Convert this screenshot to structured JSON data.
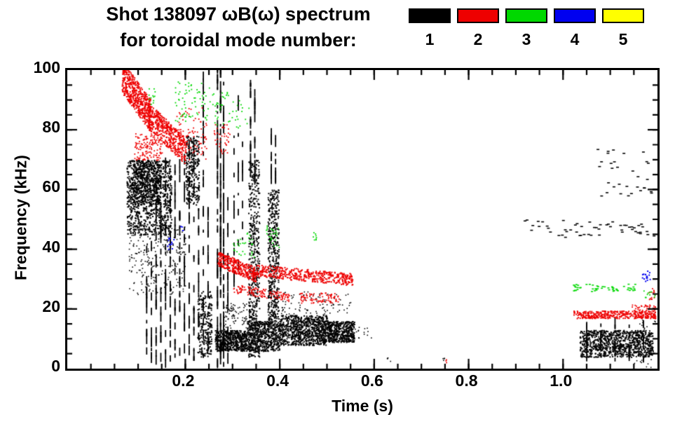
{
  "header": {
    "title_line1": "Shot 138097 ωB(ω) spectrum",
    "title_line2": "for toroidal mode number:"
  },
  "chart_data": {
    "type": "scatter",
    "title": "Shot 138097 ωB(ω) spectrum for toroidal mode number",
    "xlabel": "Time (s)",
    "ylabel": "Frequency (kHz)",
    "xlim": [
      -0.05,
      1.2
    ],
    "ylim": [
      0,
      100
    ],
    "xticks": [
      0.2,
      0.4,
      0.6,
      0.8,
      1.0
    ],
    "xtick_labels": [
      "0.2",
      "0.4",
      "0.6",
      "0.8",
      "1.0"
    ],
    "yticks": [
      0,
      20,
      40,
      60,
      80,
      100
    ],
    "xtick_minor_step": 0.05,
    "ytick_minor_step": 5,
    "grid": false,
    "legend_position": "top-right",
    "legend": [
      {
        "label": "1",
        "color": "#000000"
      },
      {
        "label": "2",
        "color": "#ee0000"
      },
      {
        "label": "3",
        "color": "#00d800"
      },
      {
        "label": "4",
        "color": "#0000f0"
      },
      {
        "label": "5",
        "color": "#ffff00"
      }
    ],
    "series": [
      {
        "name": "n=1",
        "color": "#000000",
        "features": [
          {
            "type": "band",
            "t": [
              0.075,
              0.17
            ],
            "f": [
              45,
              70
            ],
            "n": 900,
            "s": 2
          },
          {
            "type": "band",
            "t": [
              0.085,
              0.145
            ],
            "f": [
              55,
              70
            ],
            "n": 500,
            "s": 2
          },
          {
            "type": "band",
            "t": [
              0.08,
              0.2
            ],
            "f": [
              25,
              48
            ],
            "n": 260,
            "s": 1.6
          },
          {
            "type": "vline",
            "t": 0.118,
            "f": [
              3,
              40
            ],
            "segs": 14
          },
          {
            "type": "vline",
            "t": 0.128,
            "f": [
              0,
              45
            ],
            "segs": 16
          },
          {
            "type": "vline",
            "t": 0.138,
            "f": [
              0,
              60
            ],
            "segs": 20
          },
          {
            "type": "vline",
            "t": 0.148,
            "f": [
              0,
              65
            ],
            "segs": 22
          },
          {
            "type": "vline",
            "t": 0.158,
            "f": [
              0,
              70
            ],
            "segs": 24
          },
          {
            "type": "vline",
            "t": 0.168,
            "f": [
              0,
              72
            ],
            "segs": 24
          },
          {
            "type": "vline",
            "t": 0.178,
            "f": [
              0,
              70
            ],
            "segs": 22
          },
          {
            "type": "vline",
            "t": 0.188,
            "f": [
              2,
              68
            ],
            "segs": 20
          },
          {
            "type": "vline",
            "t": 0.198,
            "f": [
              0,
              72
            ],
            "segs": 22
          },
          {
            "type": "vline",
            "t": 0.208,
            "f": [
              0,
              76
            ],
            "segs": 24
          },
          {
            "type": "vline",
            "t": 0.218,
            "f": [
              0,
              76
            ],
            "segs": 22
          },
          {
            "type": "vline",
            "t": 0.228,
            "f": [
              3,
              60
            ],
            "segs": 16
          },
          {
            "type": "band",
            "t": [
              0.2,
              0.228
            ],
            "f": [
              55,
              78
            ],
            "n": 260,
            "s": 2
          },
          {
            "type": "band",
            "t": [
              0.225,
              0.255
            ],
            "f": [
              4,
              26
            ],
            "n": 220,
            "s": 2
          },
          {
            "type": "vline",
            "t": 0.238,
            "f": [
              0,
              97
            ],
            "segs": 34
          },
          {
            "type": "vline",
            "t": 0.248,
            "f": [
              0,
              55
            ],
            "segs": 16
          },
          {
            "type": "vline",
            "t": 0.268,
            "f": [
              0,
              100
            ],
            "segs": 55
          },
          {
            "type": "vline",
            "t": 0.2745,
            "f": [
              0,
              100
            ],
            "segs": 58
          },
          {
            "type": "vline",
            "t": 0.281,
            "f": [
              0,
              96
            ],
            "segs": 46
          },
          {
            "type": "vline",
            "t": 0.29,
            "f": [
              0,
              60
            ],
            "segs": 20
          },
          {
            "type": "band",
            "t": [
              0.262,
              0.33
            ],
            "f": [
              6,
              13
            ],
            "n": 560,
            "s": 2
          },
          {
            "type": "band",
            "t": [
              0.28,
              0.33
            ],
            "f": [
              13,
              22
            ],
            "n": 80,
            "s": 1.6
          },
          {
            "type": "vline",
            "t": 0.303,
            "f": [
              25,
              90
            ],
            "segs": 13
          },
          {
            "type": "vline",
            "t": 0.312,
            "f": [
              30,
              88
            ],
            "segs": 10
          },
          {
            "type": "vline",
            "t": 0.321,
            "f": [
              40,
              80
            ],
            "segs": 8
          },
          {
            "type": "band",
            "t": [
              0.333,
              0.356
            ],
            "f": [
              4,
              70
            ],
            "n": 520,
            "s": 2
          },
          {
            "type": "vline",
            "t": 0.338,
            "f": [
              60,
              95
            ],
            "segs": 16
          },
          {
            "type": "vline",
            "t": 0.347,
            "f": [
              60,
              93
            ],
            "segs": 14
          },
          {
            "type": "band",
            "t": [
              0.33,
              0.4
            ],
            "f": [
              6,
              16
            ],
            "n": 560,
            "s": 2
          },
          {
            "type": "band",
            "t": [
              0.374,
              0.397
            ],
            "f": [
              16,
              60
            ],
            "n": 440,
            "s": 2
          },
          {
            "type": "vline",
            "t": 0.382,
            "f": [
              60,
              80
            ],
            "segs": 10
          },
          {
            "type": "vline",
            "t": 0.391,
            "f": [
              60,
              78
            ],
            "segs": 9
          },
          {
            "type": "band",
            "t": [
              0.4,
              0.5
            ],
            "f": [
              8,
              18
            ],
            "n": 820,
            "s": 2
          },
          {
            "type": "band",
            "t": [
              0.5,
              0.557
            ],
            "f": [
              9,
              16
            ],
            "n": 460,
            "s": 2
          },
          {
            "type": "band",
            "t": [
              0.4,
              0.55
            ],
            "f": [
              18,
              26
            ],
            "n": 90,
            "s": 1.6
          },
          {
            "type": "band",
            "t": [
              0.555,
              0.6
            ],
            "f": [
              10,
              14
            ],
            "n": 14,
            "s": 1.6
          },
          {
            "type": "band",
            "t": [
              0.62,
              0.64
            ],
            "f": [
              2,
              4
            ],
            "n": 4,
            "s": 1.6
          },
          {
            "type": "band",
            "t": [
              0.74,
              0.76
            ],
            "f": [
              2,
              4
            ],
            "n": 4,
            "s": 1.6
          },
          {
            "type": "band",
            "t": [
              0.9,
              1.19
            ],
            "f": [
              44,
              50
            ],
            "n": 55,
            "sw": 4,
            "sh": 1.6
          },
          {
            "type": "band",
            "t": [
              1.07,
              1.19
            ],
            "f": [
              58,
              74
            ],
            "n": 32,
            "sw": 4,
            "sh": 1.6
          },
          {
            "type": "band",
            "t": [
              1.035,
              1.19
            ],
            "f": [
              4,
              13
            ],
            "n": 900,
            "s": 2
          },
          {
            "type": "vline",
            "t": 1.05,
            "f": [
              2,
              14
            ],
            "segs": 8
          },
          {
            "type": "vline",
            "t": 1.08,
            "f": [
              2,
              14
            ],
            "segs": 8
          },
          {
            "type": "vline",
            "t": 1.11,
            "f": [
              2,
              15
            ],
            "segs": 8
          },
          {
            "type": "vline",
            "t": 1.14,
            "f": [
              2,
              14
            ],
            "segs": 8
          },
          {
            "type": "vline",
            "t": 1.17,
            "f": [
              2,
              15
            ],
            "segs": 8
          },
          {
            "type": "band",
            "t": [
              1.15,
              1.195
            ],
            "f": [
              0,
              18
            ],
            "n": 60,
            "s": 1.6
          }
        ]
      },
      {
        "name": "n=2",
        "color": "#ee0000",
        "features": [
          {
            "type": "slope",
            "t": [
              0.065,
              0.125
            ],
            "fc": [
              98,
              85
            ],
            "w": 11,
            "n": 520,
            "s": 2
          },
          {
            "type": "slope",
            "t": [
              0.12,
              0.2
            ],
            "fc": [
              85,
              73
            ],
            "w": 9,
            "n": 460,
            "s": 2
          },
          {
            "type": "band",
            "t": [
              0.09,
              0.15
            ],
            "f": [
              70,
              79
            ],
            "n": 140,
            "s": 1.8
          },
          {
            "type": "band",
            "t": [
              0.175,
              0.245
            ],
            "f": [
              70,
              88
            ],
            "n": 90,
            "s": 1.8
          },
          {
            "type": "band",
            "t": [
              0.26,
              0.295
            ],
            "f": [
              72,
              82
            ],
            "n": 40,
            "s": 1.8
          },
          {
            "type": "slope",
            "t": [
              0.268,
              0.35
            ],
            "fc": [
              37,
              31.5
            ],
            "w": 5,
            "n": 320,
            "s": 2
          },
          {
            "type": "slope",
            "t": [
              0.35,
              0.553
            ],
            "fc": [
              33,
              30
            ],
            "w": 4,
            "n": 420,
            "s": 2
          },
          {
            "type": "slope",
            "t": [
              0.3,
              0.42
            ],
            "fc": [
              27,
              24
            ],
            "w": 3,
            "n": 140,
            "s": 1.8
          },
          {
            "type": "band",
            "t": [
              0.44,
              0.525
            ],
            "f": [
              22,
              25.5
            ],
            "n": 90,
            "s": 1.8
          },
          {
            "type": "band",
            "t": [
              1.02,
              1.195
            ],
            "f": [
              17,
              19.5
            ],
            "n": 340,
            "s": 2
          },
          {
            "type": "band",
            "t": [
              1.14,
              1.195
            ],
            "f": [
              19.5,
              21.5
            ],
            "n": 40,
            "s": 1.8
          },
          {
            "type": "band",
            "t": [
              1.18,
              1.195
            ],
            "f": [
              23,
              27
            ],
            "n": 14,
            "s": 1.8
          },
          {
            "type": "band",
            "t": [
              0.745,
              0.755
            ],
            "f": [
              2,
              4
            ],
            "n": 3,
            "s": 1.8
          }
        ]
      },
      {
        "name": "n=3",
        "color": "#00d800",
        "features": [
          {
            "type": "band",
            "t": [
              0.175,
              0.26
            ],
            "f": [
              83,
              97
            ],
            "n": 70,
            "s": 1.8
          },
          {
            "type": "band",
            "t": [
              0.26,
              0.335
            ],
            "f": [
              80,
              93
            ],
            "n": 45,
            "s": 1.8
          },
          {
            "type": "band",
            "t": [
              0.115,
              0.135
            ],
            "f": [
              88,
              94
            ],
            "n": 12,
            "s": 1.8
          },
          {
            "type": "band",
            "t": [
              0.3,
              0.345
            ],
            "f": [
              37,
              46
            ],
            "n": 30,
            "s": 1.8
          },
          {
            "type": "band",
            "t": [
              0.37,
              0.4
            ],
            "f": [
              40,
              48
            ],
            "n": 26,
            "s": 1.8
          },
          {
            "type": "band",
            "t": [
              0.465,
              0.48
            ],
            "f": [
              43,
              46
            ],
            "n": 8,
            "s": 1.8
          },
          {
            "type": "band",
            "t": [
              1.02,
              1.155
            ],
            "f": [
              26,
              28.5
            ],
            "n": 50,
            "sw": 3,
            "sh": 1.6
          },
          {
            "type": "band",
            "t": [
              1.17,
              1.195
            ],
            "f": [
              24,
              27
            ],
            "n": 10,
            "s": 1.8
          }
        ]
      },
      {
        "name": "n=4",
        "color": "#0000f0",
        "features": [
          {
            "type": "band",
            "t": [
              0.16,
              0.175
            ],
            "f": [
              40,
              44
            ],
            "n": 12,
            "s": 2
          },
          {
            "type": "band",
            "t": [
              0.188,
              0.196
            ],
            "f": [
              45,
              48
            ],
            "n": 5,
            "s": 1.8
          },
          {
            "type": "band",
            "t": [
              1.165,
              1.185
            ],
            "f": [
              29,
              33
            ],
            "n": 16,
            "s": 2
          }
        ]
      },
      {
        "name": "n=5",
        "color": "#ffff00",
        "features": []
      }
    ]
  }
}
